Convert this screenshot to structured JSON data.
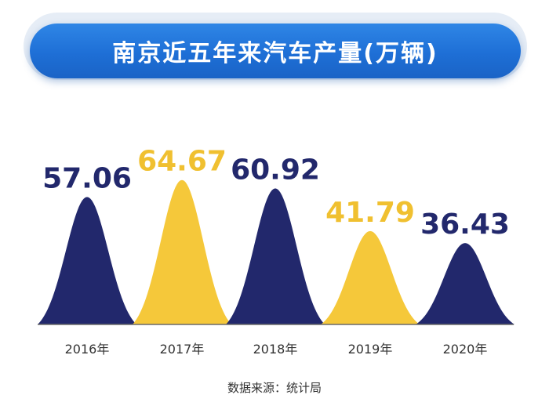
{
  "title": "南京近五年来汽车产量(万辆)",
  "source": "数据来源：统计局",
  "colors": {
    "navy": "#22286c",
    "yellow": "#f5c83a",
    "axis": "#6a6a6a"
  },
  "chart_data": {
    "type": "bar",
    "title": "南京近五年来汽车产量(万辆)",
    "categories": [
      "2016年",
      "2017年",
      "2018年",
      "2019年",
      "2020年"
    ],
    "values": [
      57.06,
      64.67,
      60.92,
      41.79,
      36.43
    ],
    "value_labels": [
      "57.06",
      "64.67",
      "60.92",
      "41.79",
      "36.43"
    ],
    "bar_colors": [
      "#22286c",
      "#f5c83a",
      "#22286c",
      "#f5c83a",
      "#22286c"
    ],
    "ylim": [
      0,
      70
    ]
  }
}
